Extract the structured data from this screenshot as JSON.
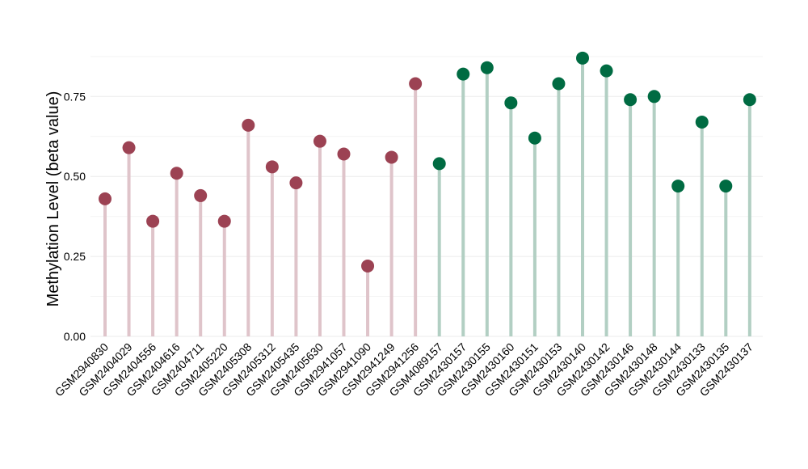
{
  "chart_data": {
    "type": "lollipop",
    "title": "",
    "xlabel": "",
    "ylabel": "Methylation Level (beta value)",
    "ylim": [
      0,
      0.88
    ],
    "yticks": [
      0.0,
      0.25,
      0.5,
      0.75
    ],
    "ytick_labels": [
      "0.00",
      "0.25",
      "0.50",
      "0.75"
    ],
    "grid": true,
    "legend": "none",
    "categories": [
      "GSM2940830",
      "GSM2404029",
      "GSM2404556",
      "GSM2404616",
      "GSM2404711",
      "GSM2405220",
      "GSM2405308",
      "GSM2405312",
      "GSM2405435",
      "GSM2405630",
      "GSM2941057",
      "GSM2941090",
      "GSM2941249",
      "GSM2941256",
      "GSM4089157",
      "GSM2430157",
      "GSM2430155",
      "GSM2430160",
      "GSM2430151",
      "GSM2430153",
      "GSM2430140",
      "GSM2430142",
      "GSM2430146",
      "GSM2430148",
      "GSM2430144",
      "GSM2430133",
      "GSM2430135",
      "GSM2430137"
    ],
    "values": [
      0.43,
      0.59,
      0.36,
      0.51,
      0.44,
      0.36,
      0.66,
      0.53,
      0.48,
      0.61,
      0.57,
      0.22,
      0.56,
      0.79,
      0.54,
      0.82,
      0.84,
      0.73,
      0.62,
      0.79,
      0.87,
      0.83,
      0.74,
      0.75,
      0.47,
      0.67,
      0.47,
      0.74
    ],
    "groups": [
      "a",
      "a",
      "a",
      "a",
      "a",
      "a",
      "a",
      "a",
      "a",
      "a",
      "a",
      "a",
      "a",
      "a",
      "b",
      "b",
      "b",
      "b",
      "b",
      "b",
      "b",
      "b",
      "b",
      "b",
      "b",
      "b",
      "b",
      "b"
    ],
    "colors": {
      "a": {
        "point": "#9c4253",
        "stem": "#dfc4ca"
      },
      "b": {
        "point": "#006b42",
        "stem": "#b2cfc3"
      }
    }
  }
}
